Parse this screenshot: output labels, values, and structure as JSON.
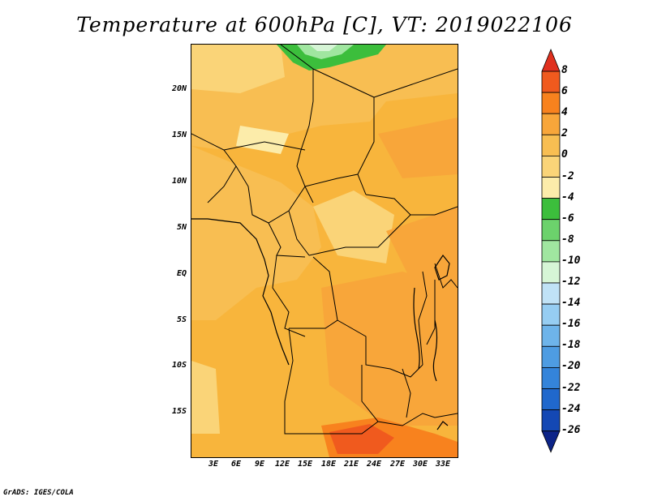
{
  "title": "Temperature at 600hPa [C], VT: 2019022106",
  "footer": "GrADS: IGES/COLA",
  "lat_labels": [
    "20N",
    "15N",
    "10N",
    "5N",
    "EQ",
    "5S",
    "10S",
    "15S"
  ],
  "lon_labels": [
    "3E",
    "6E",
    "9E",
    "12E",
    "15E",
    "18E",
    "21E",
    "24E",
    "27E",
    "30E",
    "33E"
  ],
  "colorbar": {
    "labels": [
      "8",
      "6",
      "4",
      "2",
      "0",
      "-2",
      "-4",
      "-6",
      "-8",
      "-10",
      "-12",
      "-14",
      "-16",
      "-18",
      "-20",
      "-22",
      "-24",
      "-26"
    ],
    "colors": [
      "#e0301e",
      "#f05a1e",
      "#f8821e",
      "#f8a63a",
      "#f8be52",
      "#fad478",
      "#fcecaa",
      "#3cbe3c",
      "#6cd26c",
      "#a0e6a0",
      "#d6f5d6",
      "#c0e2f6",
      "#96cdf2",
      "#6eb4ea",
      "#4e9ce2",
      "#3484da",
      "#2068cc",
      "#1448b4",
      "#0c2488"
    ]
  }
}
